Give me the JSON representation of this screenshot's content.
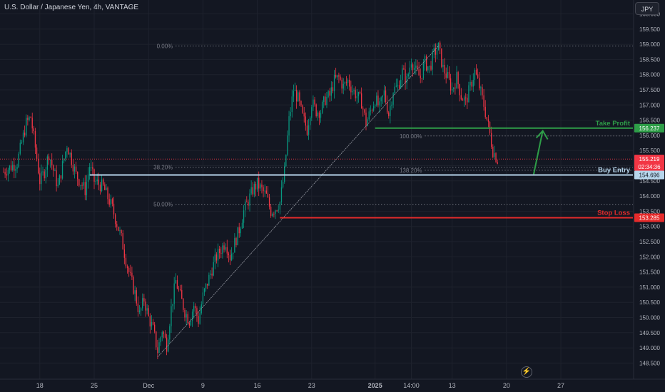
{
  "header": {
    "title": "U.S. Dollar / Japanese Yen, 4h, VANTAGE",
    "currency_button": "JPY"
  },
  "colors": {
    "bg": "#131722",
    "up": "#089981",
    "down": "#f23645",
    "grid": "#1e222d",
    "axis_text": "#b2b5be",
    "take_profit": "#2e9e48",
    "stop_loss": "#e52b2b",
    "buy_entry": "#b7d6ec",
    "price_label": "#f23645"
  },
  "chart_data": {
    "type": "candlestick",
    "ylim": [
      148.25,
      160.25
    ],
    "y_ticks": [
      "160.000",
      "159.500",
      "159.000",
      "158.500",
      "158.000",
      "157.500",
      "157.000",
      "156.500",
      "156.000",
      "155.500",
      "155.000",
      "154.500",
      "154.000",
      "153.500",
      "153.000",
      "152.500",
      "152.000",
      "151.500",
      "151.000",
      "150.500",
      "150.000",
      "149.500",
      "149.000",
      "148.500"
    ],
    "x_ticks": [
      {
        "label": "18",
        "i": 8,
        "bold": false
      },
      {
        "label": "25",
        "i": 20,
        "bold": false
      },
      {
        "label": "Dec",
        "i": 32,
        "bold": false
      },
      {
        "label": "9",
        "i": 44,
        "bold": false
      },
      {
        "label": "16",
        "i": 56,
        "bold": false
      },
      {
        "label": "23",
        "i": 68,
        "bold": false
      },
      {
        "label": "2025",
        "i": 82,
        "bold": true
      },
      {
        "label": "14:00",
        "i": 90,
        "bold": false
      },
      {
        "label": "13",
        "i": 99,
        "bold": false
      },
      {
        "label": "20",
        "i": 111,
        "bold": false
      },
      {
        "label": "27",
        "i": 123,
        "bold": false
      }
    ],
    "x_count": 132,
    "close_path": [
      [
        0,
        154.8
      ],
      [
        3,
        155.1
      ],
      [
        5,
        156.4
      ],
      [
        6,
        156.6
      ],
      [
        7,
        155.6
      ],
      [
        8,
        154.5
      ],
      [
        9,
        154.8
      ],
      [
        10,
        155.4
      ],
      [
        12,
        154.3
      ],
      [
        14,
        155.7
      ],
      [
        15,
        155.2
      ],
      [
        16,
        154.7
      ],
      [
        18,
        154.2
      ],
      [
        19,
        155.0
      ],
      [
        20,
        154.5
      ],
      [
        22,
        154.3
      ],
      [
        24,
        153.6
      ],
      [
        26,
        152.6
      ],
      [
        27,
        151.9
      ],
      [
        28,
        151.3
      ],
      [
        29,
        150.8
      ],
      [
        30,
        150.1
      ],
      [
        31,
        150.6
      ],
      [
        32,
        150.0
      ],
      [
        33,
        149.6
      ],
      [
        34,
        148.9
      ],
      [
        35,
        149.6
      ],
      [
        36,
        149.1
      ],
      [
        37,
        150.3
      ],
      [
        38,
        151.2
      ],
      [
        40,
        150.2
      ],
      [
        41,
        149.9
      ],
      [
        42,
        150.4
      ],
      [
        43,
        149.9
      ],
      [
        44,
        150.7
      ],
      [
        46,
        151.6
      ],
      [
        47,
        152.0
      ],
      [
        49,
        152.5
      ],
      [
        50,
        152.0
      ],
      [
        52,
        152.9
      ],
      [
        53,
        153.5
      ],
      [
        55,
        154.2
      ],
      [
        56,
        154.4
      ],
      [
        58,
        154.0
      ],
      [
        59,
        153.5
      ],
      [
        60,
        153.6
      ],
      [
        61,
        153.8
      ],
      [
        62,
        154.8
      ],
      [
        63,
        156.5
      ],
      [
        64,
        157.5
      ],
      [
        65,
        157.2
      ],
      [
        66,
        156.6
      ],
      [
        67,
        156.2
      ],
      [
        68,
        157.1
      ],
      [
        69,
        156.8
      ],
      [
        70,
        156.8
      ],
      [
        71,
        157.2
      ],
      [
        72,
        157.3
      ],
      [
        73,
        157.8
      ],
      [
        74,
        157.9
      ],
      [
        75,
        157.6
      ],
      [
        76,
        157.8
      ],
      [
        77,
        157.5
      ],
      [
        78,
        157.3
      ],
      [
        79,
        157.1
      ],
      [
        80,
        156.4
      ],
      [
        81,
        156.8
      ],
      [
        82,
        157.2
      ],
      [
        83,
        156.9
      ],
      [
        84,
        157.4
      ],
      [
        85,
        156.7
      ],
      [
        86,
        157.5
      ],
      [
        87,
        157.6
      ],
      [
        88,
        158.1
      ],
      [
        89,
        157.8
      ],
      [
        90,
        158.5
      ],
      [
        91,
        158.1
      ],
      [
        92,
        157.9
      ],
      [
        93,
        158.4
      ],
      [
        94,
        158.2
      ],
      [
        95,
        158.7
      ],
      [
        96,
        158.9
      ],
      [
        97,
        158.2
      ],
      [
        98,
        157.9
      ],
      [
        99,
        157.5
      ],
      [
        100,
        157.9
      ],
      [
        101,
        157.3
      ],
      [
        102,
        157.1
      ],
      [
        103,
        157.6
      ],
      [
        104,
        158.1
      ],
      [
        105,
        157.6
      ],
      [
        106,
        157.0
      ],
      [
        107,
        156.3
      ],
      [
        108,
        155.5
      ],
      [
        109,
        155.2
      ]
    ],
    "axis_labels": [
      {
        "text": "156.237",
        "price": 156.237,
        "bg": "#2e9e48",
        "fg": "#ffffff"
      },
      {
        "text": "155.219",
        "price": 155.219,
        "bg": "#f23645",
        "fg": "#ffffff"
      },
      {
        "text": "02:34:36",
        "price": 154.97,
        "bg": "#f23645",
        "fg": "#ffffff"
      },
      {
        "text": "154.696",
        "price": 154.696,
        "bg": "#b7d6ec",
        "fg": "#131722"
      },
      {
        "text": "153.285",
        "price": 153.285,
        "bg": "#e52b2b",
        "fg": "#ffffff"
      }
    ],
    "levels": [
      {
        "name": "Take Profit",
        "price": 156.237,
        "color": "#2e9e48",
        "from_i": 82,
        "to_i": 132
      },
      {
        "name": "Buy Entry",
        "price": 154.696,
        "color": "#b7d6ec",
        "from_i": 19,
        "to_i": 132
      },
      {
        "name": "Stop Loss",
        "price": 153.285,
        "color": "#e52b2b",
        "from_i": 61,
        "to_i": 132
      }
    ],
    "fib_left": [
      {
        "label": "0.00%",
        "price": 158.94
      },
      {
        "label": "38.20%",
        "price": 154.95
      },
      {
        "label": "50.00%",
        "price": 153.73
      }
    ],
    "fib_right": [
      {
        "label": "100.00%",
        "price": 155.98
      },
      {
        "label": "138.20%",
        "price": 154.85
      }
    ],
    "fib_left_anchor_i": 38,
    "fib_right_anchor_i": 93,
    "trendline": {
      "from": [
        34,
        148.7
      ],
      "to": [
        96,
        158.95
      ]
    },
    "arrow": {
      "from": [
        117,
        154.72
      ],
      "to": [
        119,
        156.15
      ]
    },
    "current_price": 155.219
  }
}
